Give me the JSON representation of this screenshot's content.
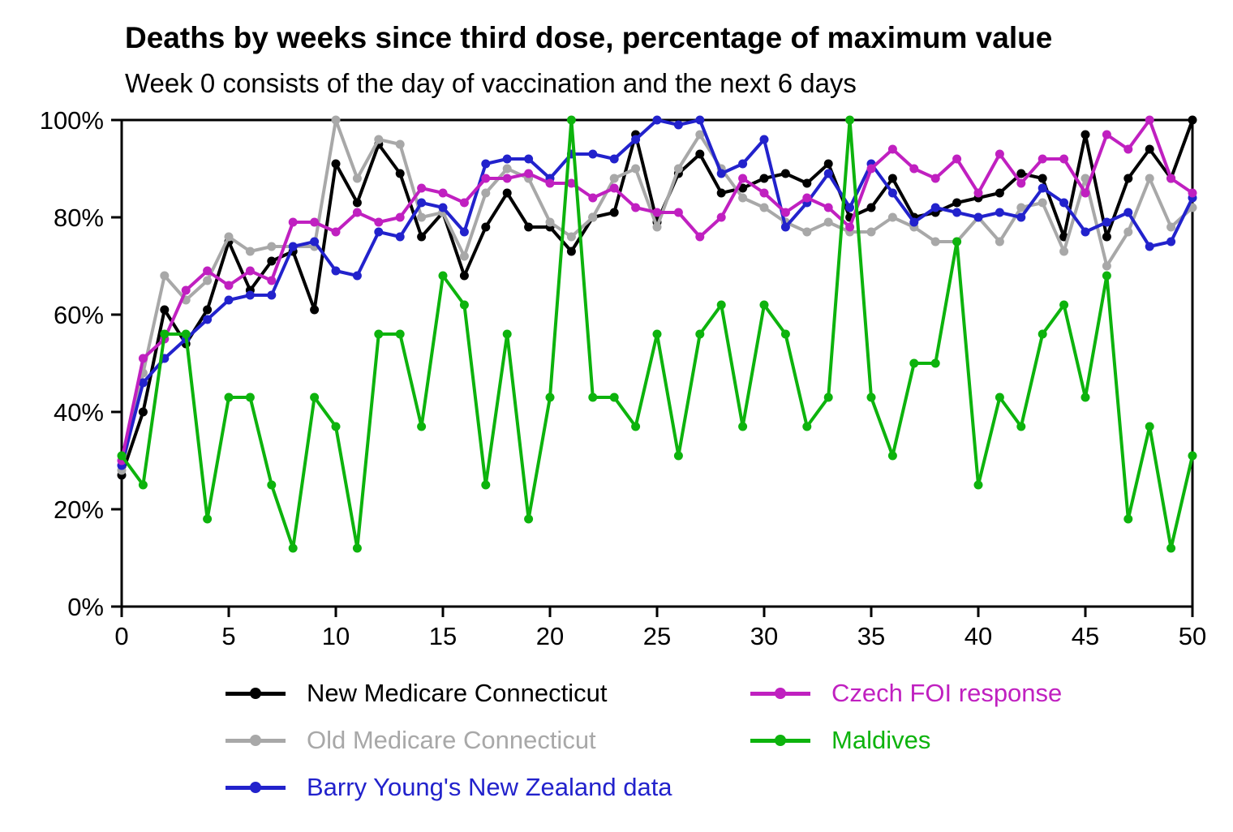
{
  "chart_data": {
    "type": "line",
    "title": "Deaths by weeks since third dose, percentage of maximum value",
    "subtitle": "Week 0 consists of the day of vaccination and the next 6 days",
    "xlabel": "",
    "ylabel": "",
    "xlim": [
      0,
      50
    ],
    "ylim": [
      0,
      100
    ],
    "grid": false,
    "legend_position": "bottom",
    "xticks": [
      {
        "value": 0,
        "label": "0"
      },
      {
        "value": 5,
        "label": "5"
      },
      {
        "value": 10,
        "label": "10"
      },
      {
        "value": 15,
        "label": "15"
      },
      {
        "value": 20,
        "label": "20"
      },
      {
        "value": 25,
        "label": "25"
      },
      {
        "value": 30,
        "label": "30"
      },
      {
        "value": 35,
        "label": "35"
      },
      {
        "value": 40,
        "label": "40"
      },
      {
        "value": 45,
        "label": "45"
      },
      {
        "value": 50,
        "label": "50"
      }
    ],
    "yticks": [
      {
        "value": 0,
        "label": "0%"
      },
      {
        "value": 20,
        "label": "20%"
      },
      {
        "value": 40,
        "label": "40%"
      },
      {
        "value": 60,
        "label": "60%"
      },
      {
        "value": 80,
        "label": "80%"
      },
      {
        "value": 100,
        "label": "100%"
      }
    ],
    "x": [
      0,
      1,
      2,
      3,
      4,
      5,
      6,
      7,
      8,
      9,
      10,
      11,
      12,
      13,
      14,
      15,
      16,
      17,
      18,
      19,
      20,
      21,
      22,
      23,
      24,
      25,
      26,
      27,
      28,
      29,
      30,
      31,
      32,
      33,
      34,
      35,
      36,
      37,
      38,
      39,
      40,
      41,
      42,
      43,
      44,
      45,
      46,
      47,
      48,
      49,
      50
    ],
    "series": [
      {
        "name": "New Medicare Connecticut",
        "color": "#000000",
        "values": [
          27,
          40,
          61,
          54,
          61,
          75,
          65,
          71,
          73,
          61,
          91,
          83,
          95,
          89,
          76,
          81,
          68,
          78,
          85,
          78,
          78,
          73,
          80,
          81,
          97,
          79,
          89,
          93,
          85,
          86,
          88,
          89,
          87,
          91,
          80,
          82,
          88,
          80,
          81,
          83,
          84,
          85,
          89,
          88,
          76,
          97,
          76,
          88,
          94,
          88,
          100
        ]
      },
      {
        "name": "Old Medicare Connecticut",
        "color": "#a8a8a8",
        "values": [
          28,
          48,
          68,
          63,
          67,
          76,
          73,
          74,
          74,
          74,
          100,
          88,
          96,
          95,
          80,
          81,
          72,
          85,
          90,
          88,
          79,
          76,
          80,
          88,
          90,
          78,
          90,
          97,
          90,
          84,
          82,
          79,
          77,
          79,
          77,
          77,
          80,
          78,
          75,
          75,
          80,
          75,
          82,
          83,
          73,
          88,
          70,
          77,
          88,
          78,
          82
        ]
      },
      {
        "name": "Barry Young's New Zealand data",
        "color": "#2222cc",
        "values": [
          29,
          46,
          51,
          55,
          59,
          63,
          64,
          64,
          74,
          75,
          69,
          68,
          77,
          76,
          83,
          82,
          77,
          91,
          92,
          92,
          88,
          93,
          93,
          92,
          96,
          100,
          99,
          100,
          89,
          91,
          96,
          78,
          83,
          89,
          82,
          91,
          85,
          79,
          82,
          81,
          80,
          81,
          80,
          86,
          83,
          77,
          79,
          81,
          74,
          75,
          84
        ]
      },
      {
        "name": "Czech FOI response",
        "color": "#c020c0",
        "values": [
          30,
          51,
          55,
          65,
          69,
          66,
          69,
          67,
          79,
          79,
          77,
          81,
          79,
          80,
          86,
          85,
          83,
          88,
          88,
          89,
          87,
          87,
          84,
          86,
          82,
          81,
          81,
          76,
          80,
          88,
          85,
          81,
          84,
          82,
          78,
          90,
          94,
          90,
          88,
          92,
          85,
          93,
          87,
          92,
          92,
          85,
          97,
          94,
          100,
          88,
          85
        ]
      },
      {
        "name": "Maldives",
        "color": "#0db30d",
        "values": [
          31,
          25,
          56,
          56,
          18,
          43,
          43,
          25,
          12,
          43,
          37,
          12,
          56,
          56,
          37,
          68,
          62,
          25,
          56,
          18,
          43,
          100,
          43,
          43,
          37,
          56,
          31,
          56,
          62,
          37,
          62,
          56,
          37,
          43,
          100,
          43,
          31,
          50,
          50,
          75,
          25,
          43,
          37,
          56,
          62,
          43,
          68,
          18,
          37,
          12,
          31
        ]
      }
    ]
  }
}
